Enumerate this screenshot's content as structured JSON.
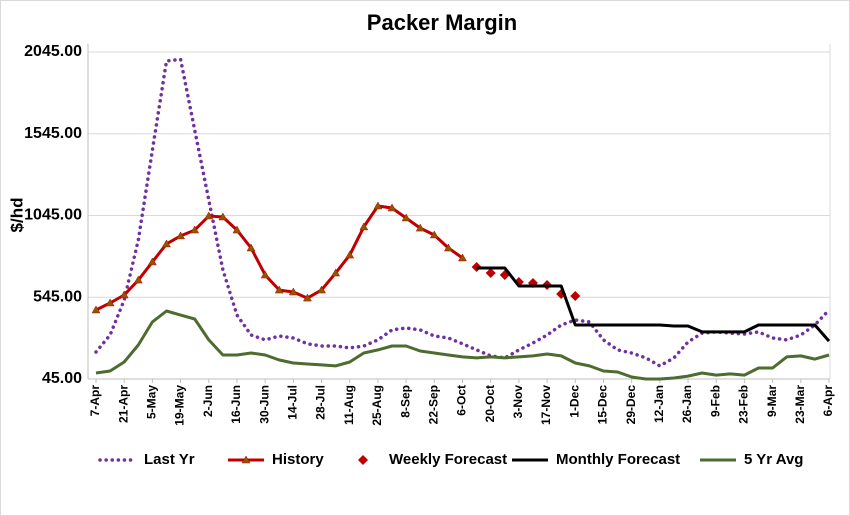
{
  "chart_data": {
    "type": "line",
    "title": "Packer Margin",
    "y_label": "$/hd",
    "categories": [
      "7-Apr",
      null,
      "21-Apr",
      null,
      "5-May",
      null,
      "19-May",
      null,
      "2-Jun",
      null,
      "16-Jun",
      null,
      "30-Jun",
      null,
      "14-Jul",
      null,
      "28-Jul",
      null,
      "11-Aug",
      null,
      "25-Aug",
      null,
      "8-Sep",
      null,
      "22-Sep",
      null,
      "6-Oct",
      null,
      "20-Oct",
      null,
      "3-Nov",
      null,
      "17-Nov",
      null,
      "1-Dec",
      null,
      "15-Dec",
      null,
      "29-Dec",
      null,
      "12-Jan",
      null,
      "26-Jan",
      null,
      "9-Feb",
      null,
      "23-Feb",
      null,
      "9-Mar",
      null,
      "23-Mar",
      null,
      "6-Apr"
    ],
    "ylim": [
      45,
      2045
    ],
    "yticks": [
      {
        "value": 45,
        "label": "45.00"
      },
      {
        "value": 545,
        "label": "545.00"
      },
      {
        "value": 1045,
        "label": "1045.00"
      },
      {
        "value": 1545,
        "label": "1545.00"
      },
      {
        "value": 2045,
        "label": "2045.00"
      }
    ],
    "grid": true,
    "legend": "bottom",
    "series": [
      {
        "name": "Last Yr",
        "color": "#7030a0",
        "style": "dotted",
        "marker": "none",
        "values": [
          210,
          314,
          528,
          895,
          1445,
          1990,
          2000,
          1568,
          1140,
          712,
          436,
          314,
          284,
          308,
          296,
          260,
          247,
          247,
          235,
          247,
          284,
          345,
          357,
          345,
          308,
          296,
          260,
          223,
          186,
          174,
          223,
          265,
          314,
          375,
          406,
          394,
          284,
          223,
          204,
          174,
          125,
          174,
          271,
          326,
          333,
          326,
          320,
          333,
          296,
          284,
          314,
          375,
          467
        ]
      },
      {
        "name": "History",
        "color": "#c00000",
        "style": "solid",
        "marker": "triangle",
        "values": [
          467,
          510,
          559,
          650,
          761,
          871,
          920,
          956,
          1042,
          1036,
          956,
          846,
          681,
          589,
          577,
          540,
          589,
          693,
          803,
          975,
          1103,
          1091,
          1030,
          968,
          926,
          846,
          785,
          null,
          null,
          null,
          null,
          null,
          null,
          null,
          null,
          null,
          null,
          null,
          null,
          null,
          null,
          null,
          null,
          null,
          null,
          null,
          null,
          null,
          null,
          null,
          null,
          null,
          null
        ]
      },
      {
        "name": "Weekly Forecast",
        "color": "#c00000",
        "style": "none",
        "marker": "diamond",
        "values": [
          null,
          null,
          null,
          null,
          null,
          null,
          null,
          null,
          null,
          null,
          null,
          null,
          null,
          null,
          null,
          null,
          null,
          null,
          null,
          null,
          null,
          null,
          null,
          null,
          null,
          null,
          null,
          730,
          693,
          681,
          638,
          632,
          620,
          565,
          553,
          null,
          null,
          null,
          null,
          null,
          null,
          null,
          null,
          null,
          null,
          null,
          null,
          null,
          null,
          null,
          null,
          null,
          null
        ]
      },
      {
        "name": "Monthly Forecast",
        "color": "#000000",
        "style": "solid",
        "marker": "none",
        "values": [
          null,
          null,
          null,
          null,
          null,
          null,
          null,
          null,
          null,
          null,
          null,
          null,
          null,
          null,
          null,
          null,
          null,
          null,
          null,
          null,
          null,
          null,
          null,
          null,
          null,
          null,
          null,
          724,
          724,
          724,
          614,
          614,
          614,
          614,
          375,
          375,
          375,
          375,
          375,
          375,
          375,
          369,
          369,
          333,
          333,
          333,
          333,
          375,
          375,
          375,
          375,
          375,
          277
        ]
      },
      {
        "name": "5 Yr Avg",
        "color": "#4e6b30",
        "style": "solid",
        "marker": "none",
        "values": [
          82,
          94,
          149,
          253,
          394,
          461,
          436,
          412,
          284,
          192,
          192,
          204,
          192,
          161,
          143,
          137,
          131,
          125,
          149,
          204,
          223,
          247,
          247,
          216,
          204,
          192,
          180,
          174,
          180,
          174,
          180,
          186,
          198,
          186,
          143,
          125,
          94,
          88,
          57,
          45,
          45,
          51,
          63,
          82,
          69,
          76,
          69,
          112,
          112,
          180,
          186,
          167,
          192
        ]
      }
    ]
  }
}
